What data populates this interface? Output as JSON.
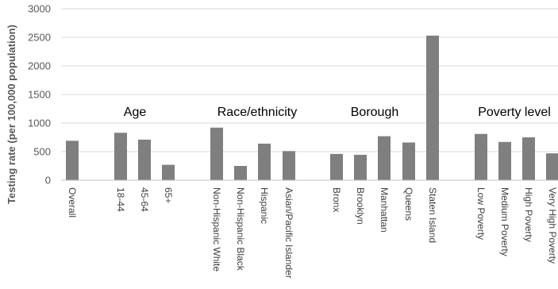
{
  "chart_data": {
    "type": "bar",
    "ylabel": "Testing rate (per 100,000 population)",
    "xlabel": "",
    "ylim": [
      0,
      3000
    ],
    "yticks": [
      "0",
      "500",
      "1000",
      "1500",
      "2000",
      "2500",
      "3000"
    ],
    "grid": true,
    "bar_color": "#7f7f7f",
    "categories": [
      "Overall",
      "18-44",
      "45-64",
      "65+",
      "Non-Hispanic White",
      "Non-Hispanic Black",
      "Hispanic",
      "Asian/Pacific Islander",
      "Bronx",
      "Brooklyn",
      "Manhattan",
      "Queens",
      "Staten Island",
      "Low Poverty",
      "Medium Poverty",
      "High Poverty",
      "Very High Poverty"
    ],
    "values": [
      690,
      830,
      710,
      270,
      920,
      250,
      640,
      510,
      460,
      445,
      770,
      660,
      2530,
      810,
      670,
      750,
      470
    ],
    "groups": [
      {
        "name": "Age",
        "members": [
          "18-44",
          "45-64",
          "65+"
        ]
      },
      {
        "name": "Race/ethnicity",
        "members": [
          "Non-Hispanic White",
          "Non-Hispanic Black",
          "Hispanic",
          "Asian/Pacific Islander"
        ]
      },
      {
        "name": "Borough",
        "members": [
          "Bronx",
          "Brooklyn",
          "Manhattan",
          "Queens",
          "Staten Island"
        ]
      },
      {
        "name": "Poverty level",
        "members": [
          "Low Poverty",
          "Medium Poverty",
          "High Poverty",
          "Very High Poverty"
        ]
      }
    ]
  }
}
